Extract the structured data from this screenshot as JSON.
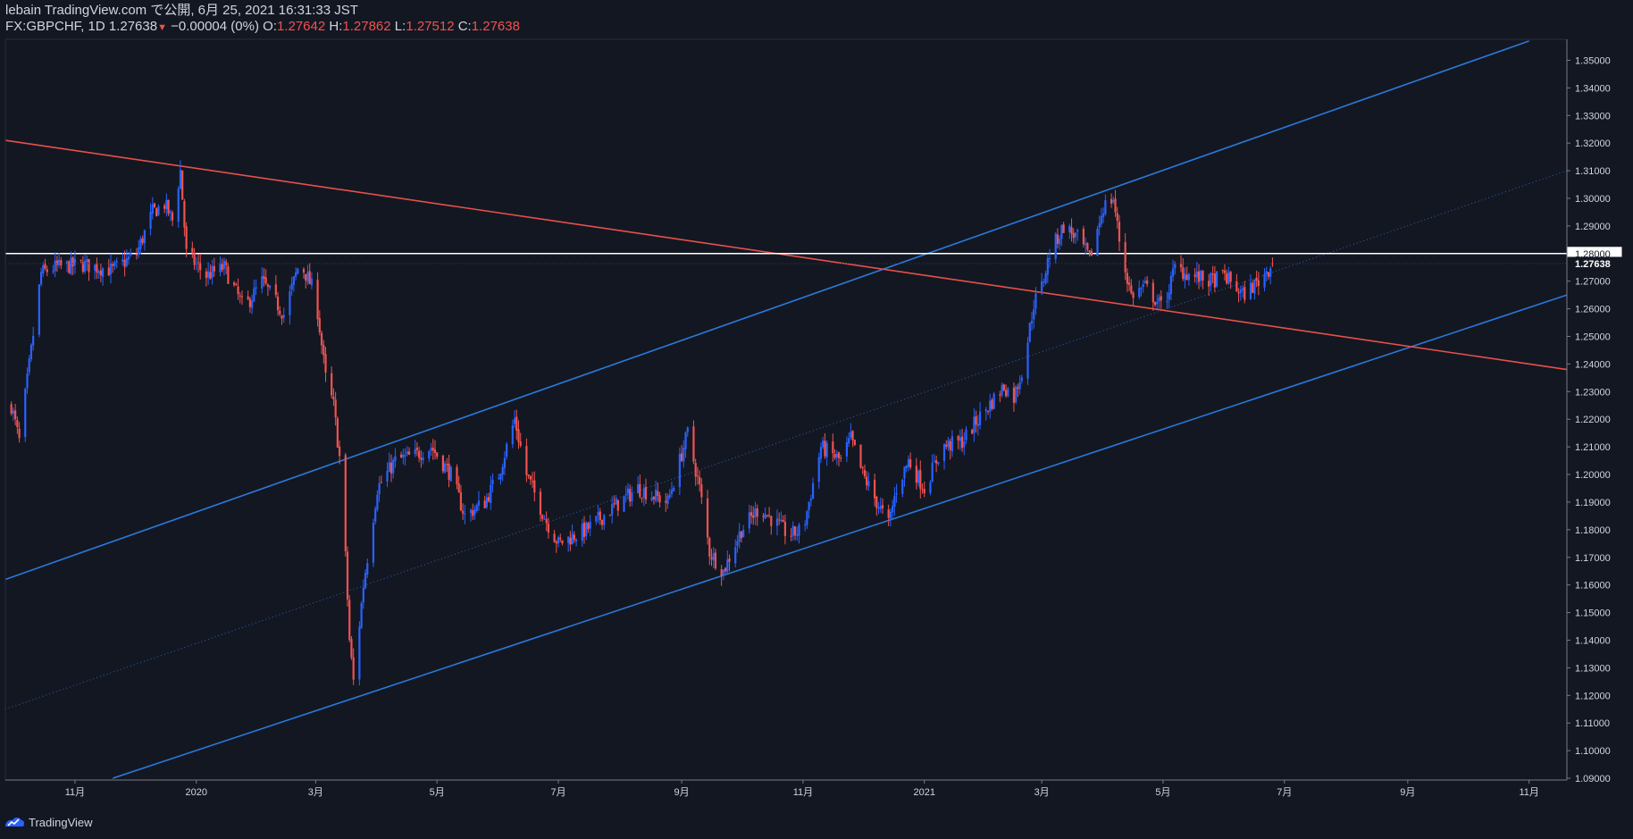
{
  "header": {
    "line1": "lebain TradingView.com で公開, 6月 25, 2021 16:31:33 JST",
    "symbol": "FX:GBPCHF, 1D 1.27638",
    "change_arrow": "▼",
    "change": "−0.00004 (0%)",
    "o_label": "O:",
    "o_value": "1.27642",
    "h_label": "H:",
    "h_value": "1.27862",
    "l_label": "L:",
    "l_value": "1.27512",
    "c_label": "C:",
    "c_value": "1.27638"
  },
  "footer": {
    "brand": "TradingView",
    "logo_icon": "tradingview-logo-icon"
  },
  "colors": {
    "background": "#131722",
    "up": "#2962ff",
    "down": "#ef5350",
    "channel": "#2979d9",
    "resistance": "#e8504a",
    "level": "#ffffff"
  },
  "chart_data": {
    "type": "candlestick",
    "symbol": "FX:GBPCHF",
    "interval": "1D",
    "ylim": [
      1.09,
      1.355
    ],
    "y_ticks": [
      "1.35000",
      "1.34000",
      "1.33000",
      "1.32000",
      "1.31000",
      "1.30000",
      "1.29000",
      "1.28000",
      "1.27000",
      "1.26000",
      "1.25000",
      "1.24000",
      "1.23000",
      "1.22000",
      "1.21000",
      "1.20000",
      "1.19000",
      "1.18000",
      "1.17000",
      "1.16000",
      "1.15000",
      "1.14000",
      "1.13000",
      "1.12000",
      "1.11000",
      "1.10000",
      "1.09000"
    ],
    "x_ticks": [
      {
        "label": "11月",
        "date": "2019-11-01"
      },
      {
        "label": "2020",
        "date": "2020-01-01"
      },
      {
        "label": "3月",
        "date": "2020-03-01"
      },
      {
        "label": "5月",
        "date": "2020-05-01"
      },
      {
        "label": "7月",
        "date": "2020-07-01"
      },
      {
        "label": "9月",
        "date": "2020-09-01"
      },
      {
        "label": "11月",
        "date": "2020-11-01"
      },
      {
        "label": "2021",
        "date": "2021-01-01"
      },
      {
        "label": "3月",
        "date": "2021-03-01"
      },
      {
        "label": "5月",
        "date": "2021-05-01"
      },
      {
        "label": "7月",
        "date": "2021-07-01"
      },
      {
        "label": "9月",
        "date": "2021-09-01"
      },
      {
        "label": "11月",
        "date": "2021-11-01"
      }
    ],
    "price_marks": [
      {
        "label": "1.28000",
        "price": 1.28,
        "style": "white"
      },
      {
        "label": "1.27638",
        "price": 1.27638,
        "style": "dark"
      }
    ],
    "anchors": [
      [
        "2019-09-30",
        1.225
      ],
      [
        "2019-10-04",
        1.212
      ],
      [
        "2019-10-10",
        1.245
      ],
      [
        "2019-10-15",
        1.273
      ],
      [
        "2019-10-22",
        1.275
      ],
      [
        "2019-11-05",
        1.276
      ],
      [
        "2019-11-20",
        1.274
      ],
      [
        "2019-12-02",
        1.28
      ],
      [
        "2019-12-10",
        1.295
      ],
      [
        "2019-12-16",
        1.298
      ],
      [
        "2019-12-20",
        1.292
      ],
      [
        "2019-12-24",
        1.31
      ],
      [
        "2019-12-27",
        1.28
      ],
      [
        "2020-01-06",
        1.272
      ],
      [
        "2020-01-15",
        1.275
      ],
      [
        "2020-01-25",
        1.26
      ],
      [
        "2020-02-03",
        1.27
      ],
      [
        "2020-02-14",
        1.258
      ],
      [
        "2020-02-22",
        1.277
      ],
      [
        "2020-03-01",
        1.265
      ],
      [
        "2020-03-06",
        1.235
      ],
      [
        "2020-03-10",
        1.225
      ],
      [
        "2020-03-14",
        1.2
      ],
      [
        "2020-03-18",
        1.14
      ],
      [
        "2020-03-20",
        1.125
      ],
      [
        "2020-03-25",
        1.16
      ],
      [
        "2020-04-01",
        1.195
      ],
      [
        "2020-04-10",
        1.205
      ],
      [
        "2020-04-20",
        1.207
      ],
      [
        "2020-04-28",
        1.21
      ],
      [
        "2020-05-08",
        1.2
      ],
      [
        "2020-05-15",
        1.185
      ],
      [
        "2020-05-25",
        1.19
      ],
      [
        "2020-06-01",
        1.2
      ],
      [
        "2020-06-09",
        1.22
      ],
      [
        "2020-06-15",
        1.2
      ],
      [
        "2020-06-25",
        1.183
      ],
      [
        "2020-07-01",
        1.175
      ],
      [
        "2020-07-15",
        1.18
      ],
      [
        "2020-08-01",
        1.19
      ],
      [
        "2020-08-10",
        1.195
      ],
      [
        "2020-08-25",
        1.19
      ],
      [
        "2020-09-04",
        1.215
      ],
      [
        "2020-09-10",
        1.195
      ],
      [
        "2020-09-15",
        1.172
      ],
      [
        "2020-09-22",
        1.165
      ],
      [
        "2020-10-01",
        1.18
      ],
      [
        "2020-10-10",
        1.188
      ],
      [
        "2020-10-25",
        1.178
      ],
      [
        "2020-11-01",
        1.18
      ],
      [
        "2020-11-10",
        1.21
      ],
      [
        "2020-11-20",
        1.205
      ],
      [
        "2020-11-25",
        1.213
      ],
      [
        "2020-12-01",
        1.2
      ],
      [
        "2020-12-08",
        1.19
      ],
      [
        "2020-12-14",
        1.182
      ],
      [
        "2020-12-18",
        1.195
      ],
      [
        "2020-12-24",
        1.205
      ],
      [
        "2021-01-01",
        1.195
      ],
      [
        "2021-01-10",
        1.21
      ],
      [
        "2021-01-20",
        1.212
      ],
      [
        "2021-01-28",
        1.22
      ],
      [
        "2021-02-10",
        1.232
      ],
      [
        "2021-02-15",
        1.228
      ],
      [
        "2021-02-20",
        1.24
      ],
      [
        "2021-02-25",
        1.262
      ],
      [
        "2021-03-01",
        1.268
      ],
      [
        "2021-03-05",
        1.28
      ],
      [
        "2021-03-12",
        1.29
      ],
      [
        "2021-03-20",
        1.285
      ],
      [
        "2021-03-25",
        1.278
      ],
      [
        "2021-04-01",
        1.297
      ],
      [
        "2021-04-06",
        1.3
      ],
      [
        "2021-04-10",
        1.28
      ],
      [
        "2021-04-15",
        1.265
      ],
      [
        "2021-04-22",
        1.268
      ],
      [
        "2021-05-01",
        1.26
      ],
      [
        "2021-05-07",
        1.275
      ],
      [
        "2021-05-15",
        1.272
      ],
      [
        "2021-05-25",
        1.27
      ],
      [
        "2021-06-01",
        1.272
      ],
      [
        "2021-06-10",
        1.265
      ],
      [
        "2021-06-18",
        1.27
      ],
      [
        "2021-06-25",
        1.27638
      ]
    ],
    "trendlines": [
      {
        "name": "channel-upper",
        "points": [
          [
            "2019-09-27",
            1.162
          ],
          [
            "2021-11-01",
            1.357
          ]
        ],
        "style": "solid"
      },
      {
        "name": "channel-lower",
        "points": [
          [
            "2019-11-20",
            1.09
          ],
          [
            "2021-11-20",
            1.265
          ]
        ],
        "style": "solid"
      },
      {
        "name": "channel-mid",
        "points": [
          [
            "2019-09-27",
            1.115
          ],
          [
            "2021-11-20",
            1.31
          ]
        ],
        "style": "dotted"
      },
      {
        "name": "resistance",
        "points": [
          [
            "2019-09-27",
            1.321
          ],
          [
            "2021-11-20",
            1.238
          ]
        ],
        "style": "solid"
      },
      {
        "name": "horizontal-level",
        "points": [
          [
            "2019-09-27",
            1.28
          ],
          [
            "2021-11-20",
            1.28
          ]
        ],
        "style": "solid"
      }
    ]
  }
}
